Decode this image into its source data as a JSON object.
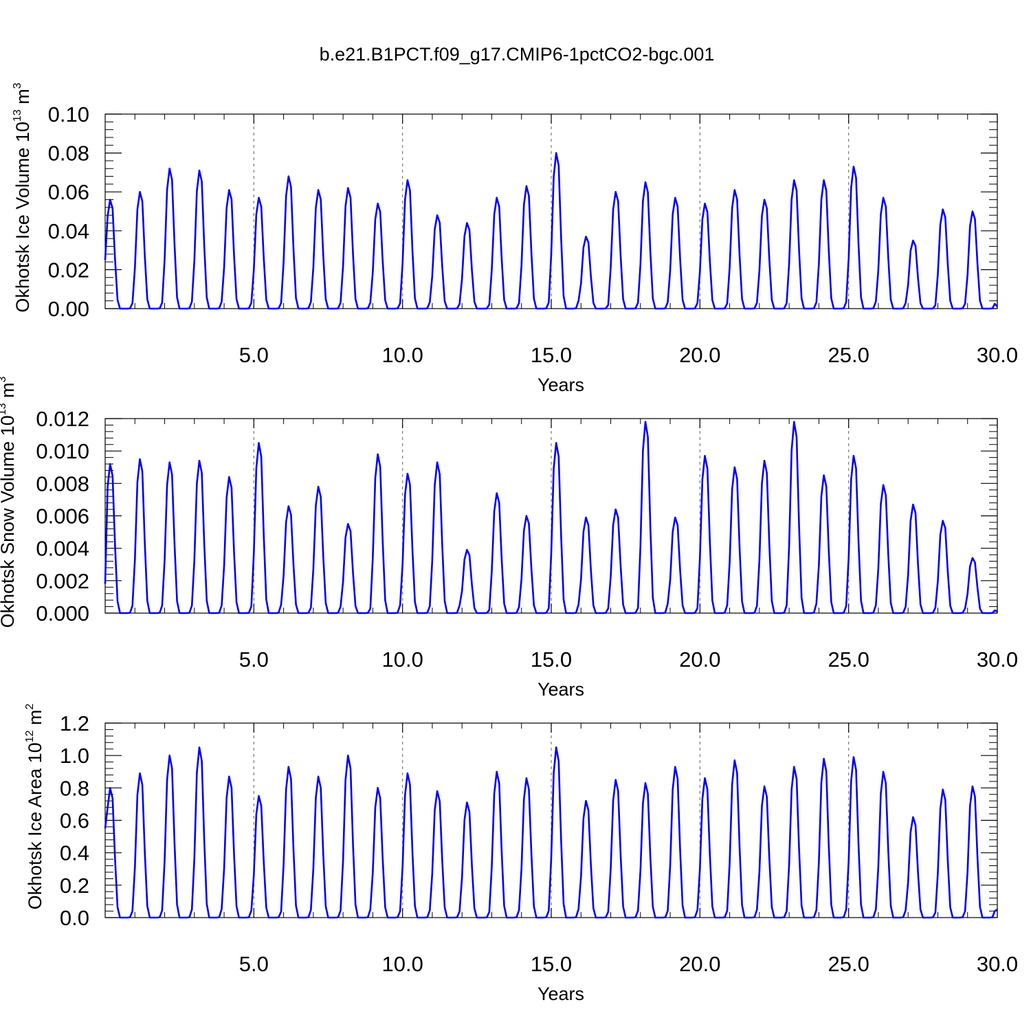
{
  "title": "b.e21.B1PCT.f09_g17.CMIP6-1pctCO2-bgc.001",
  "chart_data": [
    {
      "type": "line",
      "ylabel": "Okhotsk Ice Volume 10",
      "ylabel_exp": "13",
      "ylabel_unit": " m",
      "ylabel_unit_exp": "3",
      "xlabel": "Years",
      "xlim": [
        0,
        30
      ],
      "ylim": [
        0,
        0.1
      ],
      "xticks": [
        5,
        10,
        15,
        20,
        25,
        30
      ],
      "xtick_labels": [
        "5.0",
        "10.0",
        "15.0",
        "20.0",
        "25.0",
        "30.0"
      ],
      "yticks": [
        0,
        0.02,
        0.04,
        0.06,
        0.08,
        0.1
      ],
      "ytick_labels": [
        "0.00",
        "0.02",
        "0.04",
        "0.06",
        "0.08",
        "0.10"
      ],
      "grid_x": [
        5,
        10,
        15,
        20,
        25
      ],
      "color": "#0000ff",
      "start_value": 0.025,
      "end_value": 0.001,
      "annual_peaks": [
        0.056,
        0.06,
        0.072,
        0.071,
        0.061,
        0.057,
        0.068,
        0.061,
        0.062,
        0.054,
        0.066,
        0.048,
        0.044,
        0.057,
        0.063,
        0.08,
        0.037,
        0.06,
        0.065,
        0.057,
        0.054,
        0.061,
        0.056,
        0.066,
        0.066,
        0.073,
        0.057,
        0.035,
        0.051,
        0.05
      ]
    },
    {
      "type": "line",
      "ylabel": "Okhotsk Snow Volume 10",
      "ylabel_exp": "13",
      "ylabel_unit": " m",
      "ylabel_unit_exp": "3",
      "xlabel": "Years",
      "xlim": [
        0,
        30
      ],
      "ylim": [
        0,
        0.012
      ],
      "xticks": [
        5,
        10,
        15,
        20,
        25,
        30
      ],
      "xtick_labels": [
        "5.0",
        "10.0",
        "15.0",
        "20.0",
        "25.0",
        "30.0"
      ],
      "yticks": [
        0,
        0.002,
        0.004,
        0.006,
        0.008,
        0.01,
        0.012
      ],
      "ytick_labels": [
        "0.000",
        "0.002",
        "0.004",
        "0.006",
        "0.008",
        "0.010",
        "0.012"
      ],
      "grid_x": [
        5,
        10,
        15,
        20,
        25
      ],
      "color": "#0000ff",
      "start_value": 0.0018,
      "end_value": 0.0001,
      "annual_peaks": [
        0.0092,
        0.0095,
        0.0093,
        0.0094,
        0.0084,
        0.0105,
        0.0066,
        0.0078,
        0.0055,
        0.0098,
        0.0086,
        0.0093,
        0.0039,
        0.0074,
        0.006,
        0.0105,
        0.0059,
        0.0064,
        0.0118,
        0.0059,
        0.0097,
        0.009,
        0.0094,
        0.0118,
        0.0085,
        0.0097,
        0.0079,
        0.0067,
        0.0057,
        0.0034
      ]
    },
    {
      "type": "line",
      "ylabel": "Okhotsk Ice Area 10",
      "ylabel_exp": "12",
      "ylabel_unit": " m",
      "ylabel_unit_exp": "2",
      "xlabel": "Years",
      "xlim": [
        0,
        30
      ],
      "ylim": [
        0,
        1.2
      ],
      "xticks": [
        5,
        10,
        15,
        20,
        25,
        30
      ],
      "xtick_labels": [
        "5.0",
        "10.0",
        "15.0",
        "20.0",
        "25.0",
        "30.0"
      ],
      "yticks": [
        0,
        0.2,
        0.4,
        0.6,
        0.8,
        1.0,
        1.2
      ],
      "ytick_labels": [
        "0.0",
        "0.2",
        "0.4",
        "0.6",
        "0.8",
        "1.0",
        "1.2"
      ],
      "grid_x": [
        5,
        10,
        15,
        20,
        25
      ],
      "color": "#0000ff",
      "start_value": 0.55,
      "end_value": 0.05,
      "annual_peaks": [
        0.8,
        0.89,
        1.0,
        1.05,
        0.87,
        0.75,
        0.93,
        0.87,
        1.0,
        0.8,
        0.89,
        0.78,
        0.71,
        0.9,
        0.86,
        1.05,
        0.72,
        0.85,
        0.83,
        0.93,
        0.86,
        0.97,
        0.81,
        0.93,
        0.98,
        0.99,
        0.9,
        0.62,
        0.79,
        0.81
      ]
    }
  ]
}
